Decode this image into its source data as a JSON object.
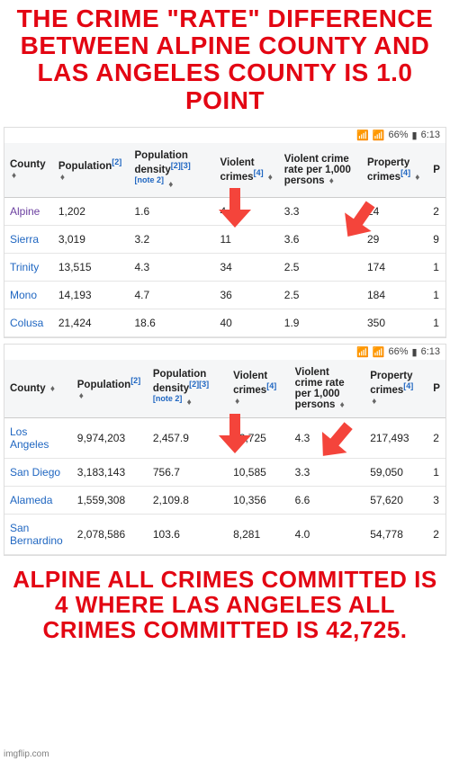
{
  "headline_top": "THE CRIME \"RATE\" DIFFERENCE BETWEEN ALPINE COUNTY AND LAS ANGELES COUNTY IS 1.0 POINT",
  "headline_bottom": "ALPINE ALL CRIMES COMMITTED IS 4 WHERE LAS ANGELES ALL CRIMES COMMITTED IS 42,725.",
  "watermark": "imgflip.com",
  "status": {
    "battery": "66%",
    "time": "6:13",
    "wifi_icon": "📶",
    "signal_icon": "📶",
    "batt_icon": "▮"
  },
  "arrow_color": "#f4443b",
  "table_colors": {
    "header_bg": "#f5f6f7",
    "border": "#e5e5e5",
    "link": "#1f66c1",
    "visited": "#6b3fa0",
    "text": "#222222"
  },
  "headers": {
    "county": "County",
    "population": "Population",
    "pop_ref": "[2]",
    "density": "Population density",
    "density_ref": "[2][3][note 2]",
    "violent": "Violent crimes",
    "violent_ref": "[4]",
    "rate": "Violent crime rate per 1,000 persons",
    "property": "Property crimes",
    "property_ref": "[4]",
    "partial": "P"
  },
  "table1": {
    "rows": [
      {
        "county": "Alpine",
        "visited": true,
        "population": "1,202",
        "density": "1.6",
        "violent": "4",
        "rate": "3.3",
        "property": "24",
        "partial": "2"
      },
      {
        "county": "Sierra",
        "visited": false,
        "population": "3,019",
        "density": "3.2",
        "violent": "11",
        "rate": "3.6",
        "property": "29",
        "partial": "9"
      },
      {
        "county": "Trinity",
        "visited": false,
        "population": "13,515",
        "density": "4.3",
        "violent": "34",
        "rate": "2.5",
        "property": "174",
        "partial": "1"
      },
      {
        "county": "Mono",
        "visited": false,
        "population": "14,193",
        "density": "4.7",
        "violent": "36",
        "rate": "2.5",
        "property": "184",
        "partial": "1"
      },
      {
        "county": "Colusa",
        "visited": false,
        "population": "21,424",
        "density": "18.6",
        "violent": "40",
        "rate": "1.9",
        "property": "350",
        "partial": "1"
      }
    ]
  },
  "table2": {
    "rows": [
      {
        "county": "Los Angeles",
        "visited": false,
        "population": "9,974,203",
        "density": "2,457.9",
        "violent": "42,725",
        "rate": "4.3",
        "property": "217,493",
        "partial": "2"
      },
      {
        "county": "San Diego",
        "visited": false,
        "population": "3,183,143",
        "density": "756.7",
        "violent": "10,585",
        "rate": "3.3",
        "property": "59,050",
        "partial": "1"
      },
      {
        "county": "Alameda",
        "visited": false,
        "population": "1,559,308",
        "density": "2,109.8",
        "violent": "10,356",
        "rate": "6.6",
        "property": "57,620",
        "partial": "3"
      },
      {
        "county": "San Bernardino",
        "visited": false,
        "population": "2,078,586",
        "density": "103.6",
        "violent": "8,281",
        "rate": "4.0",
        "property": "54,778",
        "partial": "2"
      }
    ]
  }
}
